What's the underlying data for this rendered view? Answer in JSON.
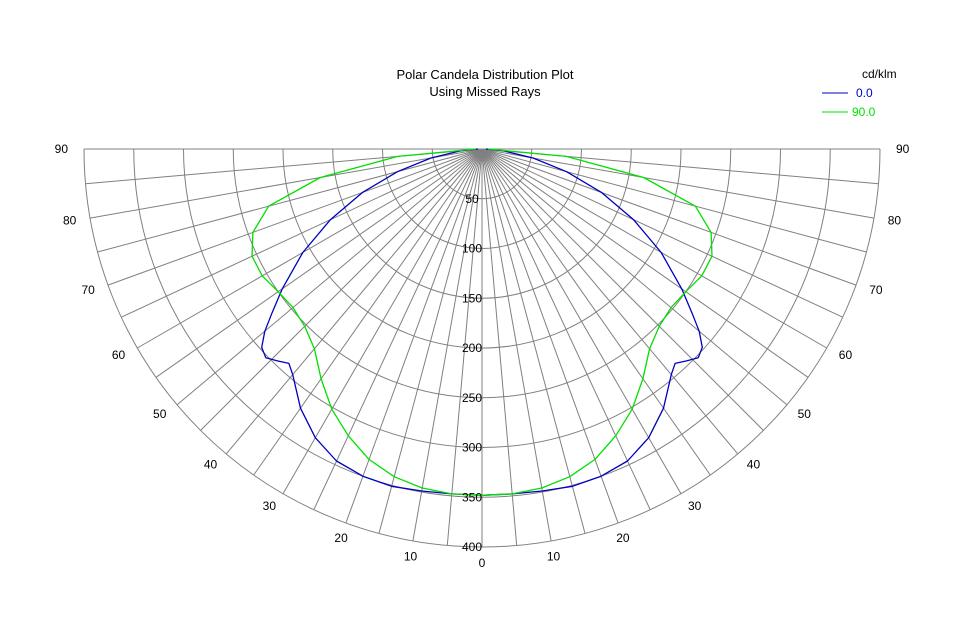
{
  "colors": {
    "grid": "#808080",
    "background": "#ffffff",
    "text": "#000000"
  },
  "chart_data": {
    "type": "line",
    "subtype": "polar-semicircle",
    "title": "Polar Candela Distribution Plot",
    "subtitle": "Using Missed Rays",
    "units_label": "cd/klm",
    "radial_range": [
      0,
      400
    ],
    "radial_ticks": [
      "50",
      "100",
      "150",
      "200",
      "250",
      "300",
      "350",
      "400"
    ],
    "angle_range_deg": [
      0,
      90
    ],
    "angle_labels": {
      "left": [
        "10",
        "20",
        "30",
        "40",
        "50",
        "60",
        "70",
        "80",
        "90"
      ],
      "center": "0",
      "right": [
        "10",
        "20",
        "30",
        "40",
        "50",
        "60",
        "70",
        "80",
        "90"
      ]
    },
    "grid": true,
    "legend_position": "top-right",
    "series": [
      {
        "name": "0.0",
        "color": "#0000c0",
        "angles_deg": [
          0,
          5,
          10,
          15,
          20,
          25,
          30,
          35,
          40,
          42,
          44,
          46,
          48,
          50,
          52,
          55,
          60,
          65,
          70,
          75,
          80,
          85,
          90
        ],
        "values": [
          348,
          348,
          349,
          351,
          350,
          346,
          335,
          318,
          296,
          290,
          296,
          302,
          298,
          285,
          268,
          245,
          208,
          168,
          128,
          88,
          52,
          22,
          4
        ]
      },
      {
        "name": "90.0",
        "color": "#00e000",
        "angles_deg": [
          0,
          5,
          10,
          15,
          20,
          25,
          30,
          35,
          40,
          45,
          50,
          55,
          60,
          65,
          70,
          75,
          80,
          85,
          90
        ],
        "values": [
          348,
          348,
          346,
          341,
          332,
          318,
          302,
          282,
          262,
          252,
          248,
          250,
          255,
          255,
          245,
          222,
          165,
          85,
          6
        ]
      }
    ]
  }
}
